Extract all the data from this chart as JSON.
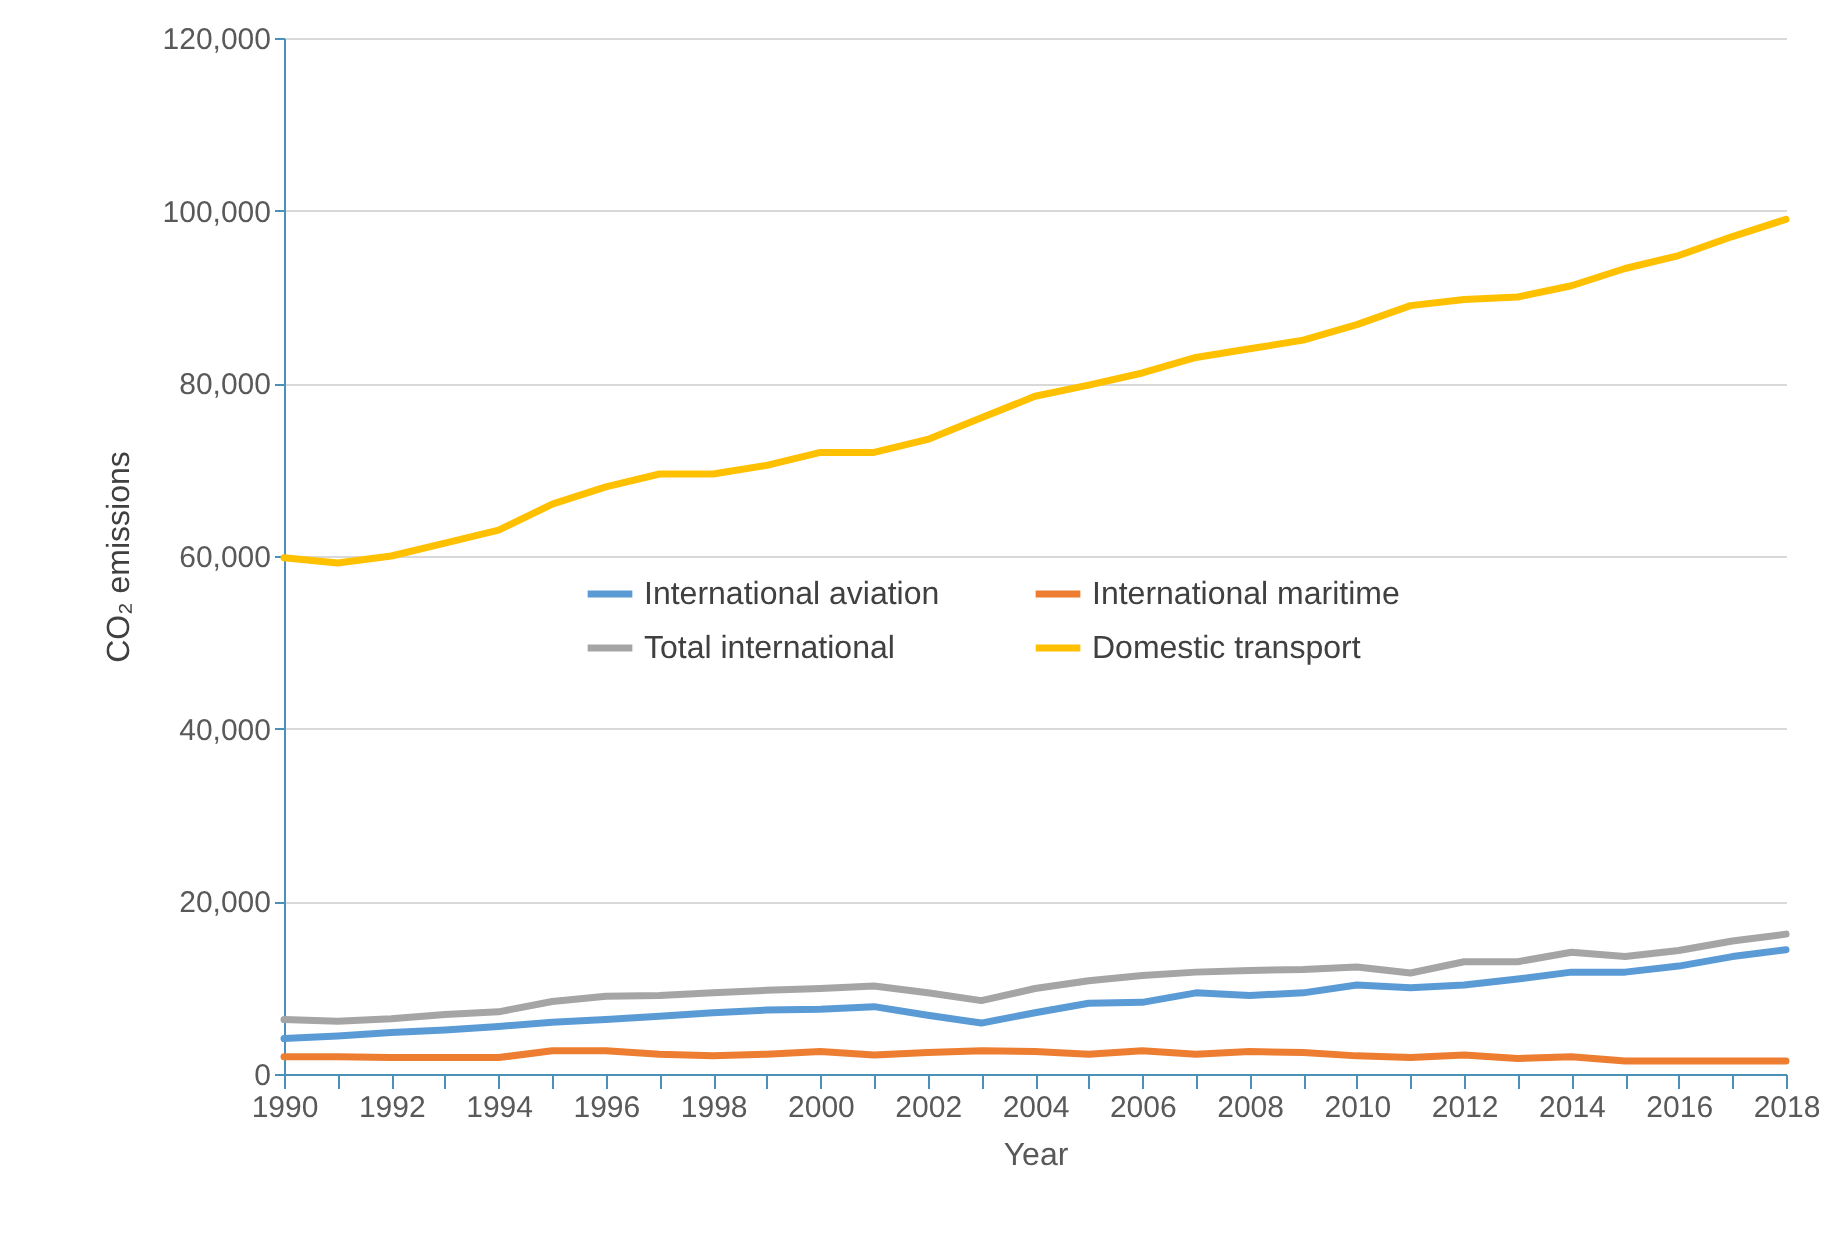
{
  "chart_data": {
    "type": "line",
    "xlabel": "Year",
    "ylabel": "CO₂ emissions",
    "x": [
      1990,
      1991,
      1992,
      1993,
      1994,
      1995,
      1996,
      1997,
      1998,
      1999,
      2000,
      2001,
      2002,
      2003,
      2004,
      2005,
      2006,
      2007,
      2008,
      2009,
      2010,
      2011,
      2012,
      2013,
      2014,
      2015,
      2016,
      2017,
      2018
    ],
    "series": [
      {
        "name": "International aviation",
        "color": "#5b9bd5",
        "values": [
          4100,
          4400,
          4800,
          5100,
          5500,
          6000,
          6300,
          6700,
          7100,
          7400,
          7500,
          7800,
          6800,
          5900,
          7100,
          8200,
          8300,
          9400,
          9100,
          9400,
          10300,
          10000,
          10300,
          11000,
          11800,
          11800,
          12500,
          13600,
          14400
        ]
      },
      {
        "name": "International maritime",
        "color": "#ed7d31",
        "values": [
          2000,
          2000,
          1900,
          1900,
          1900,
          2700,
          2700,
          2300,
          2100,
          2300,
          2600,
          2200,
          2500,
          2700,
          2600,
          2300,
          2700,
          2300,
          2600,
          2500,
          2100,
          1900,
          2200,
          1800,
          2000,
          1500,
          1500,
          1500,
          1500
        ]
      },
      {
        "name": "Total international",
        "color": "#a5a5a5",
        "values": [
          6300,
          6100,
          6400,
          6900,
          7200,
          8400,
          9000,
          9100,
          9400,
          9700,
          9900,
          10200,
          9400,
          8500,
          9900,
          10800,
          11400,
          11800,
          12000,
          12100,
          12400,
          11700,
          13000,
          13000,
          14100,
          13600,
          14300,
          15400,
          16200
        ]
      },
      {
        "name": "Domestic transport",
        "color": "#ffc000",
        "values": [
          59800,
          59200,
          60000,
          61500,
          63000,
          66000,
          68000,
          69500,
          69500,
          70500,
          72000,
          72000,
          73500,
          76000,
          78500,
          79800,
          81200,
          83000,
          84000,
          85000,
          86800,
          89000,
          89700,
          90000,
          91300,
          93300,
          94800,
          97000,
          99000
        ]
      }
    ],
    "xlim": [
      1990,
      2018
    ],
    "xticks": [
      1990,
      {
        "value": 1991,
        "label": null
      },
      1992,
      {
        "value": 1993,
        "label": null
      },
      1994,
      {
        "value": 1995,
        "label": null
      },
      1996,
      {
        "value": 1997,
        "label": null
      },
      1998,
      {
        "value": 1999,
        "label": null
      },
      2000,
      {
        "value": 2001,
        "label": null
      },
      2002,
      {
        "value": 2003,
        "label": null
      },
      2004,
      {
        "value": 2005,
        "label": null
      },
      2006,
      {
        "value": 2007,
        "label": null
      },
      2008,
      {
        "value": 2009,
        "label": null
      },
      2010,
      {
        "value": 2011,
        "label": null
      },
      2012,
      {
        "value": 2013,
        "label": null
      },
      2014,
      {
        "value": 2015,
        "label": null
      },
      2016,
      {
        "value": 2017,
        "label": null
      },
      2018
    ],
    "ylim": [
      0,
      120000
    ],
    "yticks": [
      0,
      {
        "value": 20000,
        "label": "20,000"
      },
      {
        "value": 40000,
        "label": "40,000"
      },
      {
        "value": 60000,
        "label": "60,000"
      },
      {
        "value": 80000,
        "label": "80,000"
      },
      {
        "value": 100000,
        "label": "100,000"
      },
      {
        "value": 120000,
        "label": "120,000"
      }
    ],
    "grid": "y",
    "legend": "center",
    "marker": "none",
    "line_style": "solid"
  }
}
